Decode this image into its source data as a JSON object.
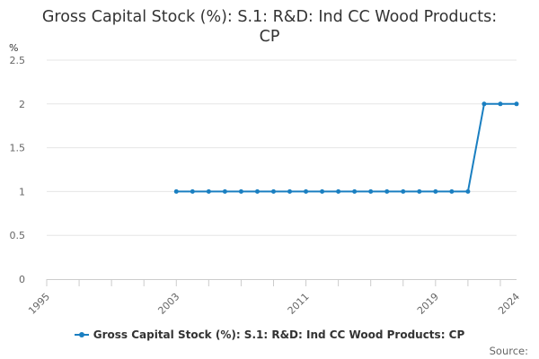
{
  "colors": {
    "series": "#1a7fc1",
    "grid": "#e6e6e6",
    "axis": "#cccccc"
  },
  "chart_data": {
    "type": "line",
    "title_lines": [
      "Gross Capital Stock (%): S.1: R&D: Ind CC Wood Products:",
      "CP"
    ],
    "ylabel": "%",
    "xlabel": "",
    "ylim": [
      0,
      2.5
    ],
    "yticks": [
      "0",
      "0.5",
      "1",
      "1.5",
      "2",
      "2.5"
    ],
    "xlim": [
      1995,
      2024
    ],
    "xticks": [
      "1995",
      "2003",
      "2011",
      "2019",
      "2024"
    ],
    "grid": true,
    "legend_position": "bottom",
    "series": [
      {
        "name": "Gross Capital Stock (%): S.1: R&D: Ind CC Wood Products: CP",
        "x": [
          2003,
          2004,
          2005,
          2006,
          2007,
          2008,
          2009,
          2010,
          2011,
          2012,
          2013,
          2014,
          2015,
          2016,
          2017,
          2018,
          2019,
          2020,
          2021,
          2022,
          2023,
          2024
        ],
        "values": [
          1,
          1,
          1,
          1,
          1,
          1,
          1,
          1,
          1,
          1,
          1,
          1,
          1,
          1,
          1,
          1,
          1,
          1,
          1,
          2,
          2,
          2
        ]
      }
    ]
  },
  "source_label": "Source:"
}
